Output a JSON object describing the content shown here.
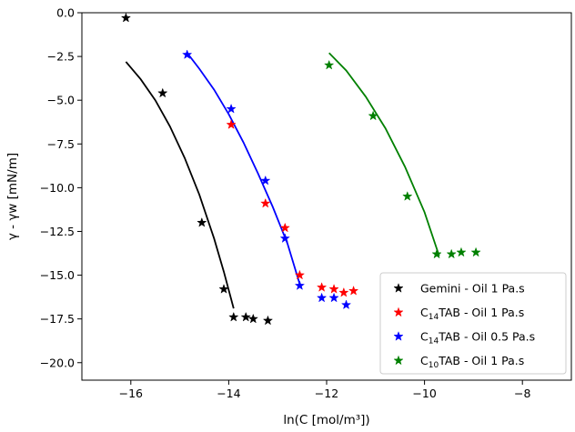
{
  "chart_data": {
    "type": "scatter",
    "title": "",
    "xlabel": "ln(C [mol/m³])",
    "ylabel": "γ - γw [mN/m]",
    "xlim": [
      -17.0,
      -7.0
    ],
    "ylim": [
      -21.0,
      0.0
    ],
    "x_ticks": [
      -16,
      -14,
      -12,
      -10,
      -8
    ],
    "y_ticks": [
      0.0,
      -2.5,
      -5.0,
      -7.5,
      -10.0,
      -12.5,
      -15.0,
      -17.5,
      -20.0
    ],
    "x_tick_labels": [
      "−16",
      "−14",
      "−12",
      "−10",
      "−8"
    ],
    "y_tick_labels": [
      "0.0",
      "−2.5",
      "−5.0",
      "−7.5",
      "−10.0",
      "−12.5",
      "−15.0",
      "−17.5",
      "−20.0"
    ],
    "grid": false,
    "legend_position": "lower-right",
    "series": [
      {
        "name": "Gemini  - Oil 1 Pa.s",
        "color": "#000000",
        "marker": "star",
        "points": [
          [
            -16.1,
            -0.3
          ],
          [
            -15.35,
            -4.6
          ],
          [
            -14.55,
            -12.0
          ],
          [
            -14.1,
            -15.8
          ],
          [
            -13.9,
            -17.4
          ],
          [
            -13.65,
            -17.4
          ],
          [
            -13.5,
            -17.5
          ],
          [
            -13.2,
            -17.6
          ]
        ],
        "fit": [
          [
            -16.1,
            -2.8
          ],
          [
            -15.8,
            -3.8
          ],
          [
            -15.5,
            -5.0
          ],
          [
            -15.2,
            -6.5
          ],
          [
            -14.9,
            -8.3
          ],
          [
            -14.6,
            -10.4
          ],
          [
            -14.3,
            -12.9
          ],
          [
            -14.1,
            -14.8
          ],
          [
            -13.9,
            -16.9
          ]
        ]
      },
      {
        "name": "C14TAB - Oil 1 Pa.s",
        "name_main": "C",
        "name_sub": "14",
        "name_rest": "TAB - Oil 1 Pa.s",
        "color": "#ff0000",
        "marker": "star",
        "points": [
          [
            -13.95,
            -6.4
          ],
          [
            -13.25,
            -10.9
          ],
          [
            -12.85,
            -12.3
          ],
          [
            -12.55,
            -15.0
          ],
          [
            -12.1,
            -15.7
          ],
          [
            -11.85,
            -15.8
          ],
          [
            -11.65,
            -16.0
          ],
          [
            -11.45,
            -15.9
          ]
        ],
        "fit": []
      },
      {
        "name": "C14TAB - Oil 0.5 Pa.s",
        "name_main": "C",
        "name_sub": "14",
        "name_rest": "TAB - Oil 0.5 Pa.s",
        "color": "#0000ff",
        "marker": "star",
        "points": [
          [
            -14.85,
            -2.4
          ],
          [
            -13.95,
            -5.5
          ],
          [
            -13.25,
            -9.6
          ],
          [
            -12.85,
            -12.9
          ],
          [
            -12.55,
            -15.6
          ],
          [
            -12.1,
            -16.3
          ],
          [
            -11.85,
            -16.3
          ],
          [
            -11.6,
            -16.7
          ]
        ],
        "fit": [
          [
            -14.85,
            -2.3
          ],
          [
            -14.6,
            -3.2
          ],
          [
            -14.3,
            -4.4
          ],
          [
            -14.0,
            -5.8
          ],
          [
            -13.7,
            -7.4
          ],
          [
            -13.4,
            -9.2
          ],
          [
            -13.1,
            -11.1
          ],
          [
            -12.8,
            -13.2
          ],
          [
            -12.55,
            -15.5
          ]
        ]
      },
      {
        "name": "C10TAB - Oil 1 Pa.s",
        "name_main": "C",
        "name_sub": "10",
        "name_rest": "TAB - Oil 1 Pa.s",
        "color": "#008000",
        "marker": "star",
        "points": [
          [
            -11.95,
            -3.0
          ],
          [
            -11.05,
            -5.9
          ],
          [
            -10.35,
            -10.5
          ],
          [
            -9.75,
            -13.8
          ],
          [
            -9.45,
            -13.8
          ],
          [
            -9.25,
            -13.7
          ],
          [
            -8.95,
            -13.7
          ]
        ],
        "fit": [
          [
            -11.95,
            -2.3
          ],
          [
            -11.6,
            -3.3
          ],
          [
            -11.2,
            -4.8
          ],
          [
            -10.8,
            -6.6
          ],
          [
            -10.4,
            -8.8
          ],
          [
            -10.0,
            -11.4
          ],
          [
            -9.7,
            -13.9
          ]
        ]
      }
    ]
  }
}
